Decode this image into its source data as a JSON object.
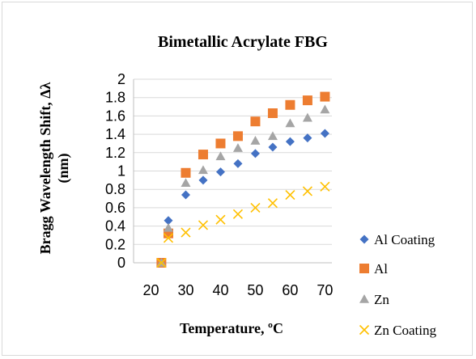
{
  "chart_data": {
    "type": "scatter",
    "title": "Bimetallic Acrylate FBG",
    "xlabel": "Temperature, ºC",
    "ylabel_line1": "Bragg Wavelength Shift, Δλ",
    "ylabel_line2": "(nm)",
    "xlim": [
      15,
      72
    ],
    "ylim": [
      0,
      2
    ],
    "xticks": [
      20,
      30,
      40,
      50,
      60,
      70
    ],
    "yticks": [
      0,
      0.2,
      0.4,
      0.6,
      0.8,
      1,
      1.2,
      1.4,
      1.6,
      1.8,
      2
    ],
    "ytick_labels": [
      "0",
      "0.2",
      "0.4",
      "0.6",
      "0.8",
      "1",
      "1.2",
      "1.4",
      "1.6",
      "1.8",
      "2"
    ],
    "xtick_labels": [
      "20",
      "30",
      "40",
      "50",
      "60",
      "70"
    ],
    "grid": "horizontal",
    "legend_position": "right",
    "series": [
      {
        "name": "Al Coating",
        "marker": "diamond",
        "color": "#4472c4",
        "x": [
          23,
          25,
          30,
          35,
          40,
          45,
          50,
          55,
          60,
          65,
          70
        ],
        "y": [
          0,
          0.46,
          0.74,
          0.9,
          0.99,
          1.08,
          1.19,
          1.26,
          1.32,
          1.36,
          1.41
        ]
      },
      {
        "name": "Al",
        "marker": "square",
        "color": "#ed7d31",
        "x": [
          23,
          25,
          30,
          35,
          40,
          45,
          50,
          55,
          60,
          65,
          70
        ],
        "y": [
          0,
          0.32,
          0.98,
          1.18,
          1.3,
          1.38,
          1.54,
          1.63,
          1.72,
          1.77,
          1.81
        ]
      },
      {
        "name": "Zn",
        "marker": "triangle",
        "color": "#a5a5a5",
        "x": [
          23,
          25,
          30,
          35,
          40,
          45,
          50,
          55,
          60,
          65,
          70
        ],
        "y": [
          0,
          0.38,
          0.87,
          1.01,
          1.16,
          1.25,
          1.33,
          1.38,
          1.52,
          1.58,
          1.67
        ]
      },
      {
        "name": "Zn Coating",
        "marker": "x",
        "color": "#ffc000",
        "x": [
          23,
          25,
          30,
          35,
          40,
          45,
          50,
          55,
          60,
          65,
          70
        ],
        "y": [
          0,
          0.27,
          0.33,
          0.41,
          0.47,
          0.53,
          0.6,
          0.65,
          0.74,
          0.78,
          0.83
        ]
      }
    ]
  }
}
